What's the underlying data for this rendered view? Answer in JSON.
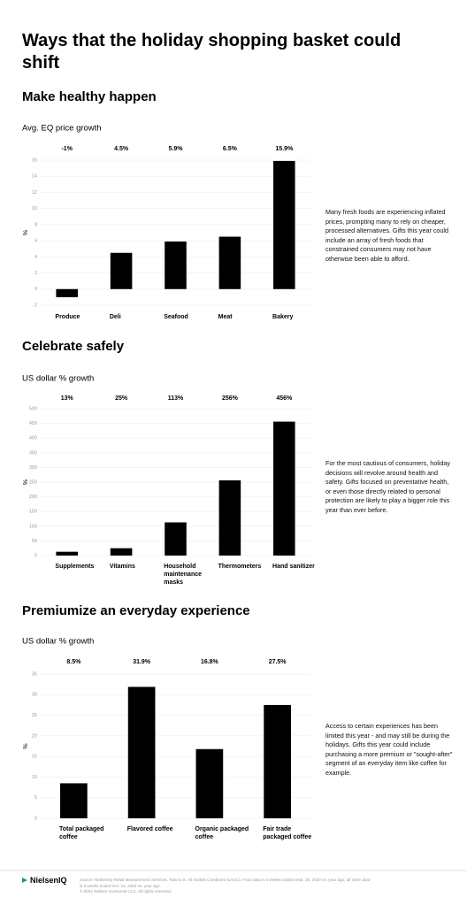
{
  "title": "Ways that the holiday shopping basket could shift",
  "chart_data": [
    {
      "type": "bar",
      "title": "Make healthy happen",
      "subtitle": "Avg. EQ price growth",
      "y_label": "%",
      "categories": [
        "Produce",
        "Deli",
        "Seafood",
        "Meat",
        "Bakery"
      ],
      "values": [
        -1,
        4.5,
        5.9,
        6.5,
        15.9
      ],
      "value_labels": [
        "-1%",
        "4.5%",
        "5.9%",
        "6.5%",
        "15.9%"
      ],
      "color": "#000000",
      "ylim": [
        -2,
        16
      ],
      "yticks": [
        -2,
        0,
        2,
        4,
        6,
        8,
        10,
        12,
        14,
        16
      ],
      "grid": true,
      "annotation": "Many fresh foods are experiencing inflated prices, prompting many to rely on cheaper, processed alternatives. Gifts this year could include an array of fresh foods that constrained consumers may not have otherwise been able to afford."
    },
    {
      "type": "bar",
      "title": "Celebrate safely",
      "subtitle": "US dollar % growth",
      "y_label": "%",
      "categories": [
        "Supplements",
        "Vitamins",
        "Household maintenance masks",
        "Thermometers",
        "Hand sanitizer"
      ],
      "values": [
        13,
        25,
        113,
        256,
        456
      ],
      "value_labels": [
        "13%",
        "25%",
        "113%",
        "256%",
        "456%"
      ],
      "color": "#000000",
      "ylim": [
        0,
        500
      ],
      "yticks": [
        0,
        50,
        100,
        150,
        200,
        250,
        300,
        350,
        400,
        450,
        500
      ],
      "grid": true,
      "annotation": "For the most cautious of consumers, holiday decisions will revolve around health and safety. Gifts focused on preventative health, or even those directly related to personal protection are likely to play a bigger role this year than ever before."
    },
    {
      "type": "bar",
      "title": "Premiumize an everyday experience",
      "subtitle": "US dollar % growth",
      "y_label": "%",
      "categories": [
        "Total packaged coffee",
        "Flavored coffee",
        "Organic packaged coffee",
        "Fair trade packaged coffee"
      ],
      "values": [
        8.5,
        31.9,
        16.8,
        27.5
      ],
      "value_labels": [
        "8.5%",
        "31.9%",
        "16.8%",
        "27.5%"
      ],
      "color": "#000000",
      "ylim": [
        0,
        35
      ],
      "yticks": [
        0,
        5,
        10,
        15,
        20,
        25,
        30,
        35
      ],
      "grid": true,
      "annotation": "Access to certain experiences has been limited this year - and may still be during the holidays. Gifts this year could include purchasing a more premium or \"sought-after\" segment of an everyday item like coffee for example."
    }
  ],
  "footer": {
    "logo": "NielsenIQ",
    "source": "Source: NielsenIQ Retail Measurement Services, Total U.S. All Outlets Combined (xAOC), Food data is 4 weeks ended Sept. 26, 2020 vs. year ago; all other data is 4 weeks ended Oct. 10, 2020 vs. year ago.",
    "copyright": "© 2021 Nielsen Consumer LLC. All rights reserved."
  }
}
